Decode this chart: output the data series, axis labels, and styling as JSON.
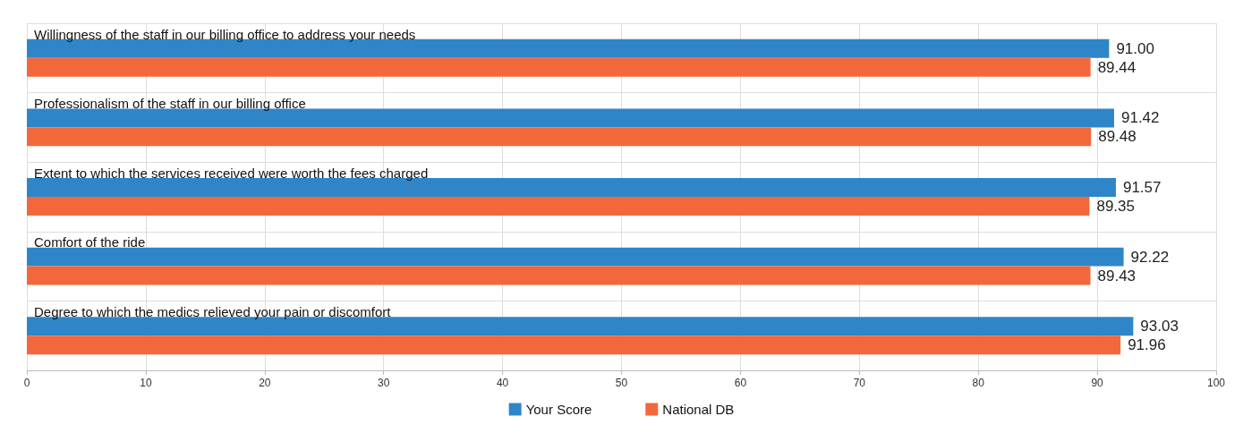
{
  "chart_data": {
    "type": "bar",
    "orientation": "horizontal",
    "categories": [
      "Willingness of the staff in our billing office to address your needs",
      "Professionalism of the staff in our billing office",
      "Extent to which the services received were worth the fees charged",
      "Comfort of the ride",
      "Degree to which the medics relieved your pain or discomfort"
    ],
    "series": [
      {
        "name": "Your Score",
        "color": "#2e86c8",
        "values": [
          91.0,
          91.42,
          91.57,
          92.22,
          93.03
        ],
        "value_labels": [
          "91.00",
          "91.42",
          "91.57",
          "92.22",
          "93.03"
        ]
      },
      {
        "name": "National DB",
        "color": "#f2683a",
        "values": [
          89.44,
          89.48,
          89.35,
          89.43,
          91.96
        ],
        "value_labels": [
          "89.44",
          "89.48",
          "89.35",
          "89.43",
          "91.96"
        ]
      }
    ],
    "xlim": [
      0,
      100
    ],
    "xticks": [
      0,
      10,
      20,
      30,
      40,
      50,
      60,
      70,
      80,
      90,
      100
    ],
    "grid": true,
    "legend": "bottom"
  }
}
